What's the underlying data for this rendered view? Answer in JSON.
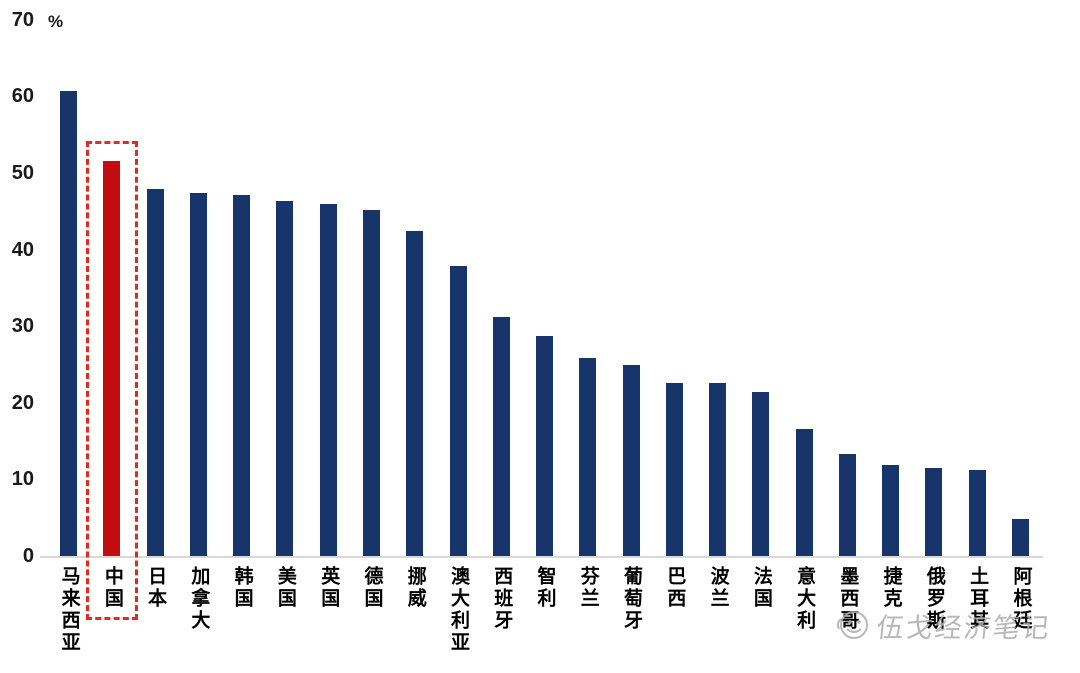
{
  "chart_data": {
    "type": "bar",
    "title": "",
    "unit_label": "%",
    "categories": [
      "马来西亚",
      "中国",
      "日本",
      "加拿大",
      "韩国",
      "美国",
      "英国",
      "德国",
      "挪威",
      "澳大利亚",
      "西班牙",
      "智利",
      "芬兰",
      "葡萄牙",
      "巴西",
      "波兰",
      "法国",
      "意大利",
      "墨西哥",
      "捷克",
      "俄罗斯",
      "土耳其",
      "阿根廷"
    ],
    "values": [
      60.8,
      51.7,
      48,
      47.5,
      47.3,
      46.5,
      46.1,
      45.3,
      42.6,
      38,
      31.3,
      28.8,
      26,
      25.1,
      22.7,
      22.7,
      21.5,
      16.7,
      13.5,
      12,
      11.6,
      11.3,
      4.9
    ],
    "ylim": [
      0,
      70
    ],
    "yticks": [
      0,
      10,
      20,
      30,
      40,
      50,
      60,
      70
    ],
    "grid": false,
    "legend_position": "none",
    "bar_color": "#17356b",
    "highlight_category": "中国",
    "highlight_color": "#c10d10",
    "highlight_box_color": "#e02b20",
    "baseline_color": "#d9d9d9"
  },
  "watermark": {
    "text": "伍戈经济笔记",
    "logo": "smiley-avatar-icon"
  }
}
